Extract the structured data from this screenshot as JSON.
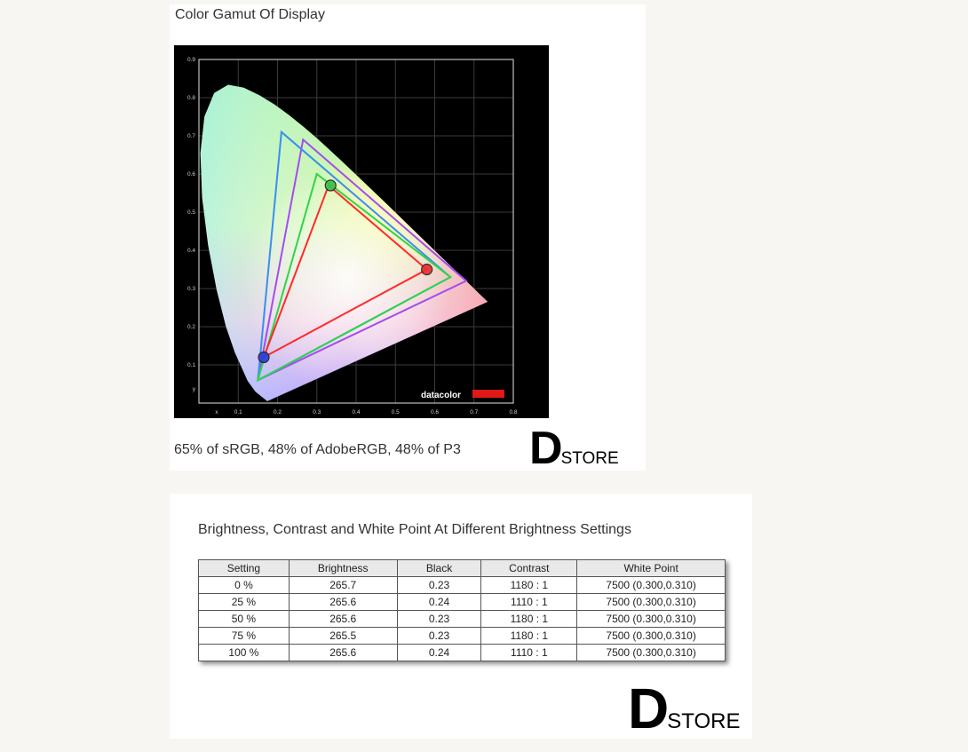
{
  "gamut_panel": {
    "title": "Color Gamut Of Display",
    "caption": "65% of sRGB, 48% of AdobeRGB, 48% of P3",
    "brand": "datacolor"
  },
  "logo": {
    "big": "D",
    "small": "STORE"
  },
  "table_panel": {
    "title": "Brightness, Contrast and White Point At Different Brightness Settings",
    "columns": [
      "Setting",
      "Brightness",
      "Black",
      "Contrast",
      "White Point"
    ],
    "rows": [
      [
        "0 %",
        "265.7",
        "0.23",
        "1180 : 1",
        "7500 (0.300,0.310)"
      ],
      [
        "25 %",
        "265.6",
        "0.24",
        "1110 : 1",
        "7500 (0.300,0.310)"
      ],
      [
        "50 %",
        "265.6",
        "0.23",
        "1180 : 1",
        "7500 (0.300,0.310)"
      ],
      [
        "75 %",
        "265.5",
        "0.23",
        "1180 : 1",
        "7500 (0.300,0.310)"
      ],
      [
        "100 %",
        "265.6",
        "0.24",
        "1110 : 1",
        "7500 (0.300,0.310)"
      ]
    ]
  },
  "chart_data": {
    "type": "scatter",
    "title": "",
    "xlabel": "x",
    "ylabel": "y",
    "xlim": [
      0,
      0.8
    ],
    "ylim": [
      0,
      0.9
    ],
    "x_ticks": [
      "x",
      "0.1",
      "0.2",
      "0.3",
      "0.4",
      "0.5",
      "0.6",
      "0.7",
      "0.8"
    ],
    "y_ticks": [
      "y",
      "0.1",
      "0.2",
      "0.3",
      "0.4",
      "0.5",
      "0.6",
      "0.7",
      "0.8",
      "0.9"
    ],
    "grid": true,
    "locus": [
      [
        0.1741,
        0.005
      ],
      [
        0.144,
        0.0297
      ],
      [
        0.1241,
        0.0578
      ],
      [
        0.0913,
        0.1327
      ],
      [
        0.0687,
        0.2007
      ],
      [
        0.0454,
        0.295
      ],
      [
        0.0235,
        0.4127
      ],
      [
        0.0082,
        0.5384
      ],
      [
        0.0039,
        0.6548
      ],
      [
        0.0139,
        0.7502
      ],
      [
        0.0389,
        0.812
      ],
      [
        0.0743,
        0.8338
      ],
      [
        0.1142,
        0.8262
      ],
      [
        0.1547,
        0.8059
      ],
      [
        0.1929,
        0.7816
      ],
      [
        0.2296,
        0.7543
      ],
      [
        0.2658,
        0.7243
      ],
      [
        0.3016,
        0.6923
      ],
      [
        0.3373,
        0.6589
      ],
      [
        0.3731,
        0.6245
      ],
      [
        0.4087,
        0.5896
      ],
      [
        0.4441,
        0.5547
      ],
      [
        0.4788,
        0.5202
      ],
      [
        0.5125,
        0.4866
      ],
      [
        0.5448,
        0.4544
      ],
      [
        0.5752,
        0.4242
      ],
      [
        0.6029,
        0.3965
      ],
      [
        0.627,
        0.3725
      ],
      [
        0.6482,
        0.3514
      ],
      [
        0.6658,
        0.334
      ],
      [
        0.6801,
        0.3197
      ],
      [
        0.6915,
        0.3083
      ],
      [
        0.7006,
        0.2993
      ],
      [
        0.714,
        0.2859
      ],
      [
        0.7347,
        0.2653
      ]
    ],
    "series": [
      {
        "name": "P3",
        "color": "#a44cf0",
        "points": [
          [
            0.68,
            0.32
          ],
          [
            0.265,
            0.69
          ],
          [
            0.15,
            0.06
          ]
        ]
      },
      {
        "name": "AdobeRGB",
        "color": "#3a8ef0",
        "points": [
          [
            0.64,
            0.33
          ],
          [
            0.21,
            0.71
          ],
          [
            0.15,
            0.06
          ]
        ]
      },
      {
        "name": "sRGB",
        "color": "#2fd44a",
        "points": [
          [
            0.64,
            0.33
          ],
          [
            0.3,
            0.6
          ],
          [
            0.15,
            0.06
          ]
        ]
      },
      {
        "name": "Display",
        "color": "#ff2a2a",
        "points": [
          [
            0.58,
            0.35
          ],
          [
            0.33,
            0.57
          ],
          [
            0.165,
            0.12
          ]
        ]
      }
    ],
    "markers": [
      {
        "color": "#e83030",
        "x": 0.58,
        "y": 0.35
      },
      {
        "color": "#39c24a",
        "x": 0.335,
        "y": 0.57
      },
      {
        "color": "#2a40d8",
        "x": 0.165,
        "y": 0.12
      }
    ]
  }
}
